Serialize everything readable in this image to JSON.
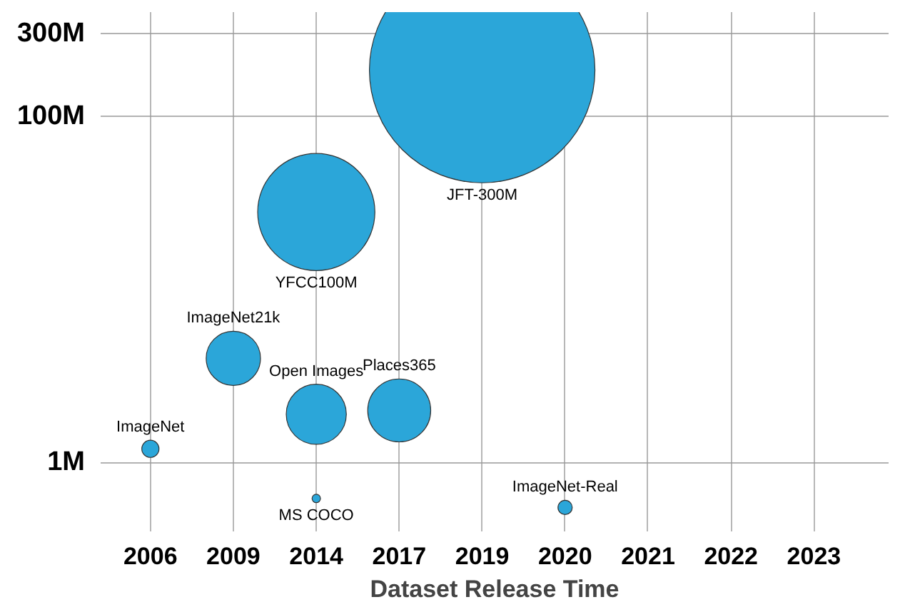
{
  "chart_data": {
    "type": "bubble",
    "xlabel": "Dataset Release Time",
    "categories": [
      "2006",
      "2009",
      "2014",
      "2017",
      "2019",
      "2020",
      "2021",
      "2022",
      "2023"
    ],
    "series": [
      {
        "name": "ImageNet",
        "values": [
          1.2,
          null,
          null,
          null,
          null,
          null,
          null,
          null,
          null
        ],
        "sizes": [
          0.0058,
          null,
          null,
          null,
          null,
          null,
          null,
          null,
          null
        ],
        "color": "#2ba6d9"
      },
      {
        "name": "ImageNet21k",
        "values": [
          null,
          4.0,
          null,
          null,
          null,
          null,
          null,
          null,
          null
        ],
        "sizes": [
          null,
          0.058,
          null,
          null,
          null,
          null,
          null,
          null,
          null
        ],
        "color": "#2ba6d9"
      },
      {
        "name": "YFCC100M",
        "values": [
          null,
          null,
          28,
          null,
          null,
          null,
          null,
          null,
          null
        ],
        "sizes": [
          null,
          null,
          0.27,
          null,
          null,
          null,
          null,
          null,
          null
        ],
        "color": "#2ba6d9"
      },
      {
        "name": "Open Images",
        "values": [
          null,
          null,
          1.9,
          null,
          null,
          null,
          null,
          null,
          null
        ],
        "sizes": [
          null,
          null,
          0.071,
          null,
          null,
          null,
          null,
          null,
          null
        ],
        "color": "#2ba6d9"
      },
      {
        "name": "MS COCO",
        "values": [
          null,
          null,
          0.62,
          null,
          null,
          null,
          null,
          null,
          null
        ],
        "sizes": [
          null,
          null,
          0.0014,
          null,
          null,
          null,
          null,
          null,
          null
        ],
        "color": "#2ba6d9"
      },
      {
        "name": "Places365",
        "values": [
          null,
          null,
          null,
          2.0,
          null,
          null,
          null,
          null,
          null
        ],
        "sizes": [
          null,
          null,
          null,
          0.078,
          null,
          null,
          null,
          null,
          null
        ],
        "color": "#2ba6d9"
      },
      {
        "name": "JFT-300M",
        "values": [
          null,
          null,
          null,
          null,
          185,
          null,
          null,
          null,
          null
        ],
        "sizes": [
          null,
          null,
          null,
          null,
          1,
          null,
          null,
          null,
          null
        ],
        "color": "#2ba6d9"
      },
      {
        "name": "ImageNet-Real",
        "values": [
          null,
          null,
          null,
          null,
          null,
          0.55,
          null,
          null,
          null
        ],
        "sizes": [
          null,
          null,
          null,
          null,
          null,
          0.004,
          null,
          null,
          null
        ],
        "color": "#2ba6d9"
      }
    ],
    "log": "y",
    "ylim": [
      0.4,
      400
    ],
    "yticks": [
      {
        "value": 1,
        "label": "1M"
      },
      {
        "value": 100,
        "label": "100M"
      },
      {
        "value": 300,
        "label": "300M"
      }
    ],
    "grid": true
  }
}
